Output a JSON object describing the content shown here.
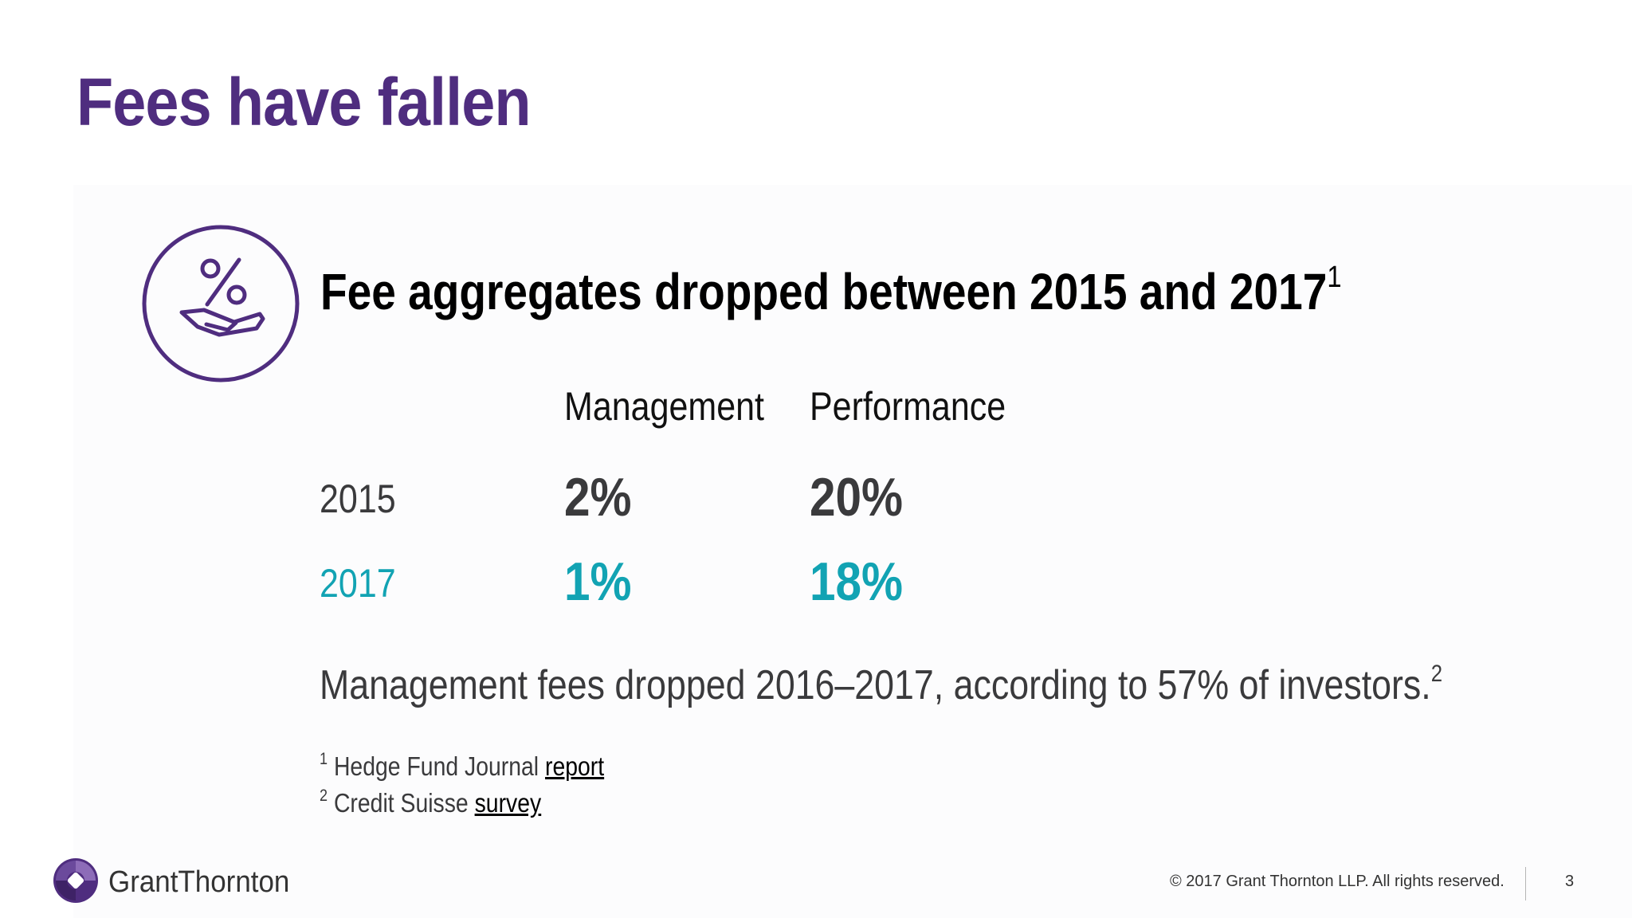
{
  "slide": {
    "title": "Fees have fallen",
    "subhead": "Fee aggregates dropped between 2015 and 2017",
    "subhead_sup": "1"
  },
  "fees": {
    "col_management": "Management",
    "col_performance": "Performance",
    "rows": [
      {
        "year": "2015",
        "management": "2%",
        "performance": "20%",
        "color": "#3a3a3c"
      },
      {
        "year": "2017",
        "management": "1%",
        "performance": "18%",
        "color": "#12a3b3"
      }
    ]
  },
  "statement": {
    "text": "Management fees dropped 2016–2017, according to 57% of investors.",
    "sup": "2"
  },
  "footnotes": [
    {
      "num": "1",
      "text": "Hedge Fund Journal ",
      "link": "report"
    },
    {
      "num": "2",
      "text": "Credit Suisse ",
      "link": "survey"
    }
  ],
  "footer": {
    "brand": "GrantThornton",
    "copyright": "© 2017 Grant Thornton LLP. All rights reserved.",
    "page": "3"
  },
  "colors": {
    "brand_purple": "#4f2d7f",
    "teal": "#12a3b3",
    "dark_text": "#3a3a3c"
  },
  "icons": {
    "fee_icon": "percent-hand-icon",
    "logo": "grant-thornton-logo-icon"
  }
}
